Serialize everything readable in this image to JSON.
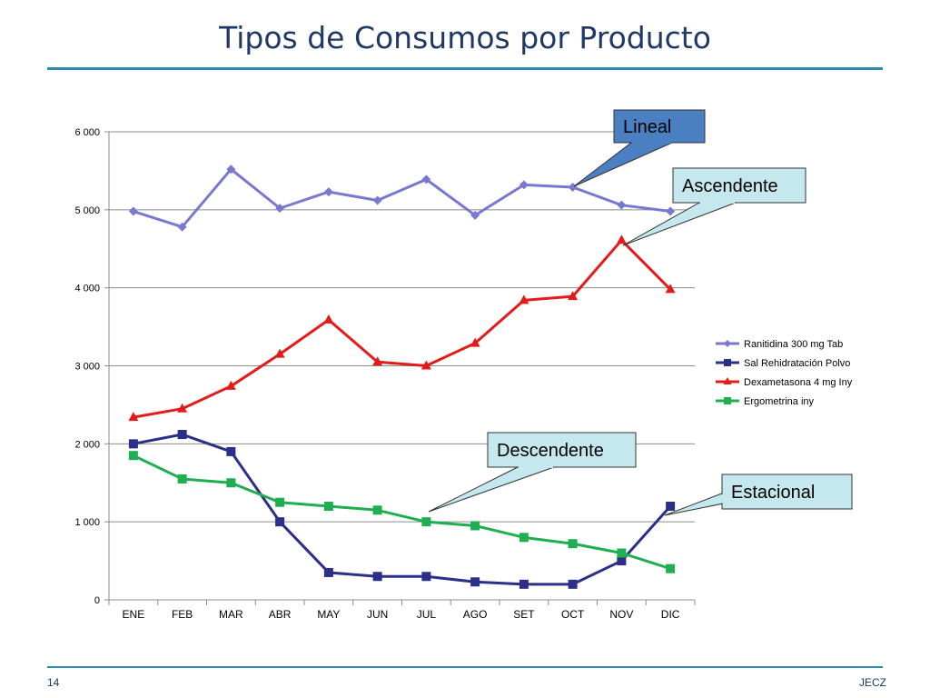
{
  "page": {
    "title": "Tipos de Consumos por Producto",
    "footer_left": "14",
    "footer_right": "JECZ"
  },
  "colors": {
    "title": "#1f3864",
    "rule": "#2e8bb0",
    "callout_blue": "#4a7fc1",
    "callout_cyan": "#c4e8ee"
  },
  "chart_data": {
    "type": "line",
    "categories": [
      "ENE",
      "FEB",
      "MAR",
      "ABR",
      "MAY",
      "JUN",
      "JUL",
      "AGO",
      "SET",
      "OCT",
      "NOV",
      "DIC"
    ],
    "ylim": [
      0,
      6000
    ],
    "yticks": [
      0,
      1000,
      2000,
      3000,
      4000,
      5000,
      6000
    ],
    "ytick_labels": [
      "0",
      "1 000",
      "2 000",
      "3 000",
      "4 000",
      "5 000",
      "6 000"
    ],
    "grid": true,
    "legend_position": "right",
    "series": [
      {
        "name": "Ranitidina 300 mg Tab",
        "color": "#7878d0",
        "marker": "diamond",
        "values": [
          4980,
          4780,
          5520,
          5020,
          5230,
          5120,
          5390,
          4930,
          5320,
          5290,
          5060,
          4980
        ]
      },
      {
        "name": "Sal Rehidratación Polvo",
        "color": "#2b2f8a",
        "marker": "square",
        "values": [
          2000,
          2120,
          1900,
          1000,
          350,
          300,
          300,
          230,
          200,
          200,
          500,
          1200
        ]
      },
      {
        "name": "Dexametasona 4 mg Iny",
        "color": "#e31b1b",
        "marker": "triangle",
        "values": [
          2340,
          2450,
          2740,
          3150,
          3590,
          3050,
          3000,
          3290,
          3840,
          3890,
          4610,
          3980
        ]
      },
      {
        "name": "Ergometrina iny",
        "color": "#1fae50",
        "marker": "square",
        "values": [
          1850,
          1550,
          1500,
          1250,
          1200,
          1150,
          1000,
          950,
          800,
          720,
          600,
          400
        ]
      }
    ],
    "annotations": [
      {
        "text": "Lineal",
        "style": "blue",
        "series": 0,
        "point": 9
      },
      {
        "text": "Ascendente",
        "style": "cyan",
        "series": 2,
        "point": 10
      },
      {
        "text": "Descendente",
        "style": "cyan",
        "series": 3,
        "point": 6
      },
      {
        "text": "Estacional",
        "style": "cyan",
        "series": 1,
        "point": 11
      }
    ]
  }
}
